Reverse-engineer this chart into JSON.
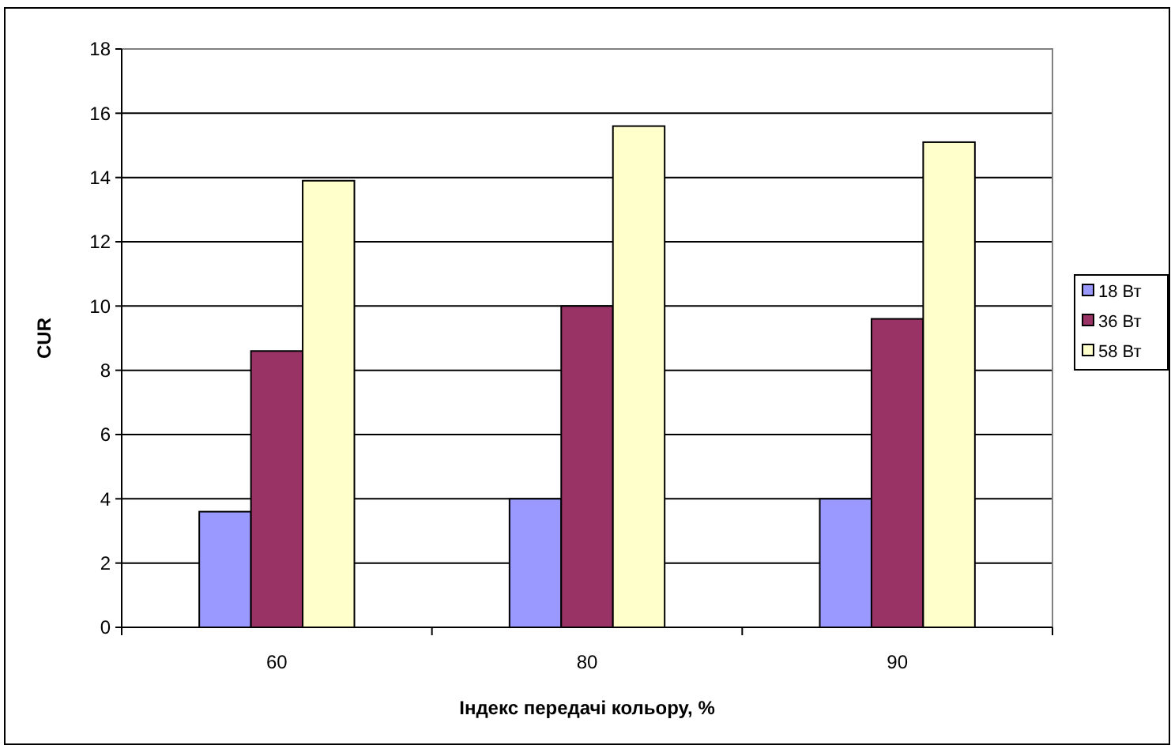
{
  "chart_data": {
    "type": "bar",
    "xlabel": "Індекс передачі кольору, %",
    "ylabel": "CUR",
    "categories": [
      "60",
      "80",
      "90"
    ],
    "series": [
      {
        "name": "18 Вт",
        "color": "#9999ff",
        "values": [
          3.6,
          4.0,
          4.0
        ]
      },
      {
        "name": "36 Вт",
        "color": "#993366",
        "values": [
          8.6,
          10.0,
          9.6
        ]
      },
      {
        "name": "58 Вт",
        "color": "#ffffcc",
        "values": [
          13.9,
          15.6,
          15.1
        ]
      }
    ],
    "ylim": [
      0,
      18
    ],
    "yticks": [
      0,
      2,
      4,
      6,
      8,
      10,
      12,
      14,
      16,
      18
    ],
    "grid": "y",
    "legend": "right"
  }
}
